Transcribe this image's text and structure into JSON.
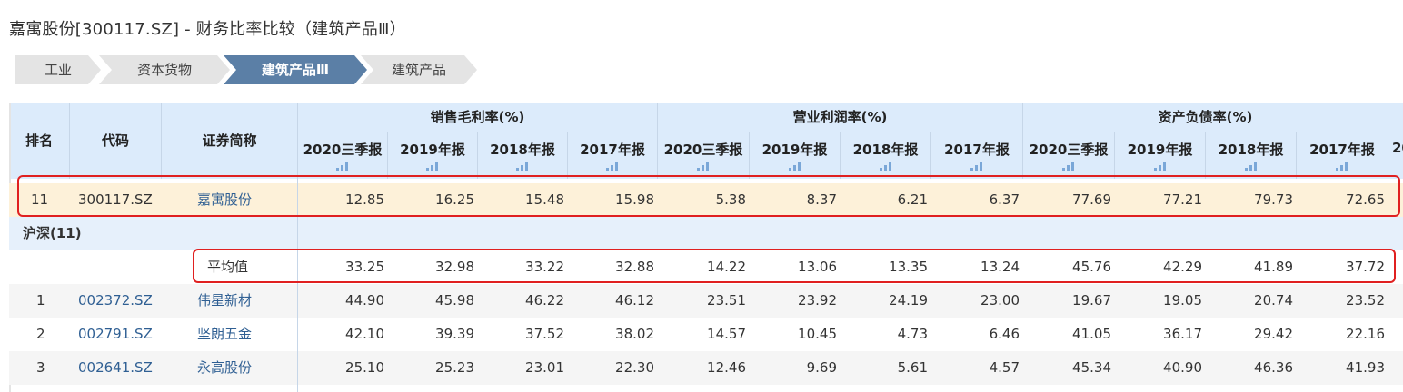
{
  "page": {
    "title": "嘉寓股份[300117.SZ] - 财务比率比较（建筑产品Ⅲ）"
  },
  "breadcrumb": [
    {
      "label": "工业",
      "active": false
    },
    {
      "label": "资本货物",
      "active": false
    },
    {
      "label": "建筑产品Ⅲ",
      "active": true
    },
    {
      "label": "建筑产品",
      "active": false
    }
  ],
  "table": {
    "fixed_headers": {
      "rank": "排名",
      "code": "代码",
      "name": "证券简称"
    },
    "groups": [
      {
        "label": "销售毛利率(%)",
        "subs": [
          "2020三季报",
          "2019年报",
          "2018年报",
          "2017年报"
        ]
      },
      {
        "label": "营业利润率(%)",
        "subs": [
          "2020三季报",
          "2019年报",
          "2018年报",
          "2017年报"
        ]
      },
      {
        "label": "资产负债率(%)",
        "subs": [
          "2020三季报",
          "2019年报",
          "2018年报",
          "2017年报"
        ]
      }
    ],
    "next_group_partial": "20",
    "highlight_row": {
      "rank": "11",
      "code": "300117.SZ",
      "name": "嘉寓股份",
      "values": [
        "12.85",
        "16.25",
        "15.48",
        "15.98",
        "5.38",
        "8.37",
        "6.21",
        "6.37",
        "77.69",
        "77.21",
        "79.73",
        "72.65"
      ]
    },
    "group_row": {
      "label": "沪深(11)"
    },
    "avg_row": {
      "label": "平均值",
      "values": [
        "33.25",
        "32.98",
        "33.22",
        "32.88",
        "14.22",
        "13.06",
        "13.35",
        "13.24",
        "45.76",
        "42.29",
        "41.89",
        "37.72"
      ]
    },
    "rows": [
      {
        "rank": "1",
        "code": "002372.SZ",
        "name": "伟星新材",
        "values": [
          "44.90",
          "45.98",
          "46.22",
          "46.12",
          "23.51",
          "23.92",
          "24.19",
          "23.00",
          "19.67",
          "19.05",
          "20.74",
          "23.52"
        ]
      },
      {
        "rank": "2",
        "code": "002791.SZ",
        "name": "坚朗五金",
        "values": [
          "42.10",
          "39.39",
          "37.52",
          "38.02",
          "14.57",
          "10.45",
          "4.73",
          "6.46",
          "41.05",
          "36.17",
          "29.42",
          "22.16"
        ]
      },
      {
        "rank": "3",
        "code": "002641.SZ",
        "name": "永高股份",
        "values": [
          "25.10",
          "25.23",
          "23.01",
          "22.30",
          "12.46",
          "9.69",
          "5.61",
          "4.57",
          "45.34",
          "40.90",
          "46.36",
          "41.93"
        ]
      }
    ]
  },
  "colors": {
    "header_bg": "#dcebfb",
    "highlight_bg": "#fdf1d9",
    "breadcrumb_active": "#5b7fa6",
    "annotation_box": "#e02020",
    "link": "#2f5f93"
  }
}
